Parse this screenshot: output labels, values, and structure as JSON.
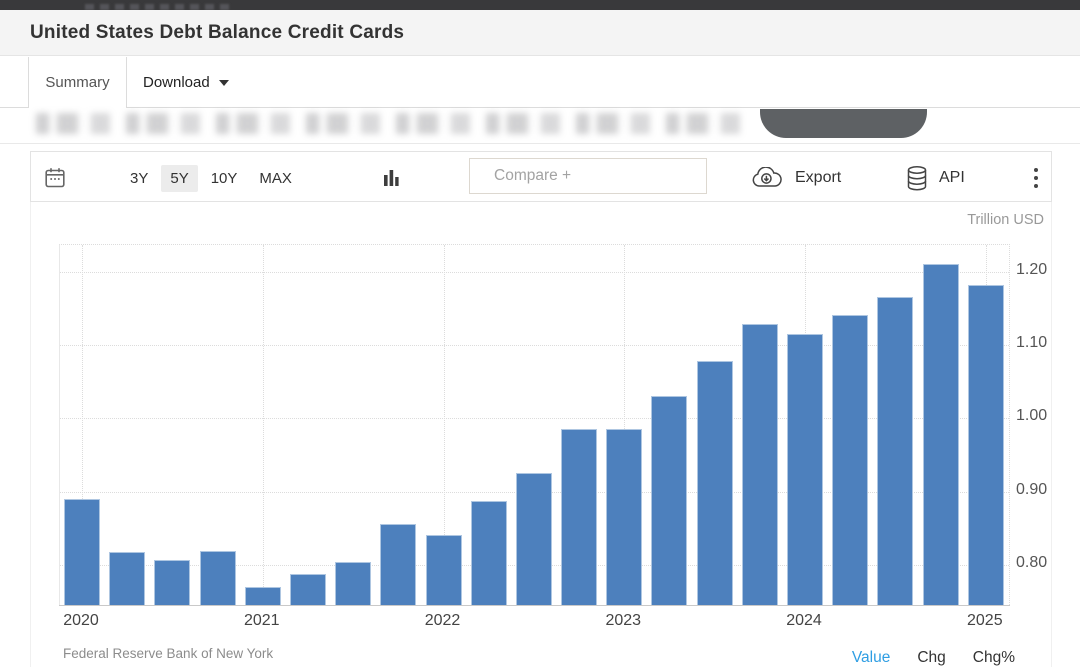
{
  "header": {
    "title": "United States Debt Balance Credit Cards"
  },
  "tabs": [
    {
      "label": "Summary",
      "active": true
    },
    {
      "label": "Download",
      "active": false,
      "has_caret": true
    }
  ],
  "toolbar": {
    "ranges": [
      "3Y",
      "5Y",
      "10Y",
      "MAX"
    ],
    "selected_range": "5Y",
    "compare_placeholder": "Compare +",
    "export_label": "Export",
    "api_label": "API",
    "icons": [
      "calendar-icon",
      "column-chart-icon",
      "cloud-download-icon",
      "database-icon",
      "kebab-menu-icon"
    ]
  },
  "chart_data": {
    "type": "bar",
    "title": "United States Debt Balance Credit Cards",
    "unit_label": "Trillion USD",
    "ylabel": "Trillion USD",
    "source": "Federal Reserve Bank of New York",
    "categories": [
      "2020 Q1",
      "2020 Q2",
      "2020 Q3",
      "2020 Q4",
      "2021 Q1",
      "2021 Q2",
      "2021 Q3",
      "2021 Q4",
      "2022 Q1",
      "2022 Q2",
      "2022 Q3",
      "2022 Q4",
      "2023 Q1",
      "2023 Q2",
      "2023 Q3",
      "2023 Q4",
      "2024 Q1",
      "2024 Q2",
      "2024 Q3",
      "2024 Q4",
      "2025 Q1"
    ],
    "values": [
      0.89,
      0.817,
      0.807,
      0.819,
      0.77,
      0.787,
      0.804,
      0.856,
      0.841,
      0.887,
      0.925,
      0.986,
      0.986,
      1.031,
      1.079,
      1.129,
      1.115,
      1.142,
      1.166,
      1.211,
      1.182
    ],
    "x_tick_labels": [
      "2020",
      "2021",
      "2022",
      "2023",
      "2024",
      "2025"
    ],
    "x_tick_category_indices": [
      0,
      4,
      8,
      12,
      16,
      20
    ],
    "y_ticks": [
      0.8,
      0.9,
      1.0,
      1.1,
      1.2
    ],
    "ylim": [
      0.745,
      1.237
    ],
    "bar_color": "#4d80bd",
    "grid": true,
    "legend_position": "none",
    "y_axis_position": "right"
  },
  "footer": {
    "source": "Federal Reserve Bank of New York",
    "links": [
      {
        "label": "Value",
        "color": "#2f9ee3"
      },
      {
        "label": "Chg"
      },
      {
        "label": "Chg%"
      }
    ]
  }
}
